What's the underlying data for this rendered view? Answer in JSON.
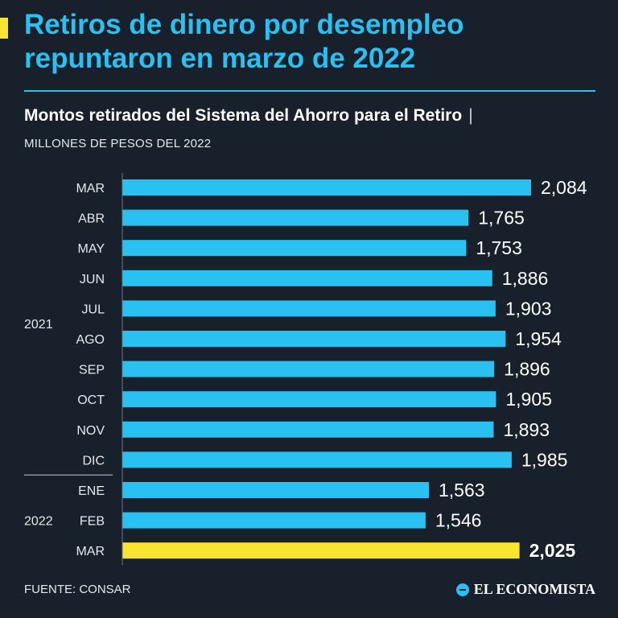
{
  "header": {
    "title": "Retiros de dinero por desempleo repuntaron en marzo de 2022",
    "subtitle": "Montos retirados del Sistema del Ahorro para el Retiro",
    "subtitle_separator": "|",
    "units": "MILLONES DE PESOS DEL 2022"
  },
  "footer": {
    "source": "FUENTE: CONSAR",
    "brand": "EL ECONOMISTA"
  },
  "colors": {
    "background": "#17202b",
    "accent": "#29c1f2",
    "highlight": "#f8e531",
    "text": "#ffffff"
  },
  "chart_data": {
    "type": "bar",
    "orientation": "horizontal",
    "title": "Montos retirados del Sistema del Ahorro para el Retiro",
    "units": "MILLONES DE PESOS DEL 2022",
    "categories": [
      "MAR",
      "ABR",
      "MAY",
      "JUN",
      "JUL",
      "AGO",
      "SEP",
      "OCT",
      "NOV",
      "DIC",
      "ENE",
      "FEB",
      "MAR"
    ],
    "values": [
      2084,
      1765,
      1753,
      1886,
      1903,
      1954,
      1896,
      1905,
      1893,
      1985,
      1563,
      1546,
      2025
    ],
    "value_labels": [
      "2,084",
      "1,765",
      "1,753",
      "1,886",
      "1,903",
      "1,954",
      "1,896",
      "1,905",
      "1,893",
      "1,985",
      "1,563",
      "1,546",
      "2,025"
    ],
    "groups": [
      {
        "label": "2021",
        "start": 0,
        "end": 9
      },
      {
        "label": "2022",
        "start": 10,
        "end": 12
      }
    ],
    "highlight_index": 12,
    "xlim": [
      0,
      2084
    ]
  }
}
